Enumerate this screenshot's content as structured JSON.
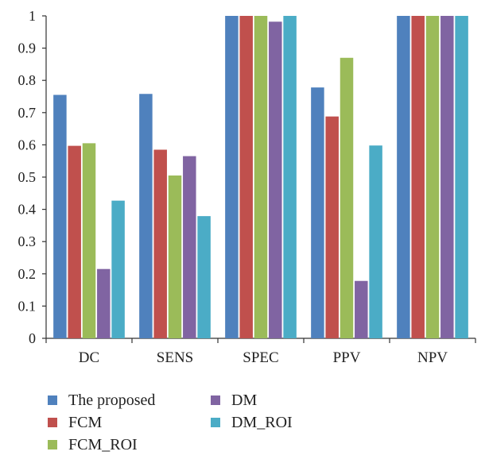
{
  "chart_data": {
    "type": "bar",
    "categories": [
      "DC",
      "SENS",
      "SPEC",
      "PPV",
      "NPV"
    ],
    "series": [
      {
        "name": "The proposed",
        "color": "#4f81bd",
        "values": [
          0.755,
          0.758,
          1.0,
          0.778,
          1.0
        ]
      },
      {
        "name": "FCM",
        "color": "#c0504d",
        "values": [
          0.597,
          0.585,
          1.0,
          0.688,
          1.0
        ]
      },
      {
        "name": "FCM_ROI",
        "color": "#9bbb59",
        "values": [
          0.605,
          0.505,
          1.0,
          0.87,
          1.0
        ]
      },
      {
        "name": "DM",
        "color": "#8064a2",
        "values": [
          0.215,
          0.565,
          0.982,
          0.178,
          1.0
        ]
      },
      {
        "name": "DM_ROI",
        "color": "#4bacc6",
        "values": [
          0.427,
          0.379,
          1.0,
          0.598,
          1.0
        ]
      }
    ],
    "ylim": [
      0,
      1
    ],
    "yticks": [
      "0",
      "0.1",
      "0.2",
      "0.3",
      "0.4",
      "0.5",
      "0.6",
      "0.7",
      "0.8",
      "0.9",
      "1"
    ],
    "grid": false,
    "legend": "bottom-left"
  }
}
